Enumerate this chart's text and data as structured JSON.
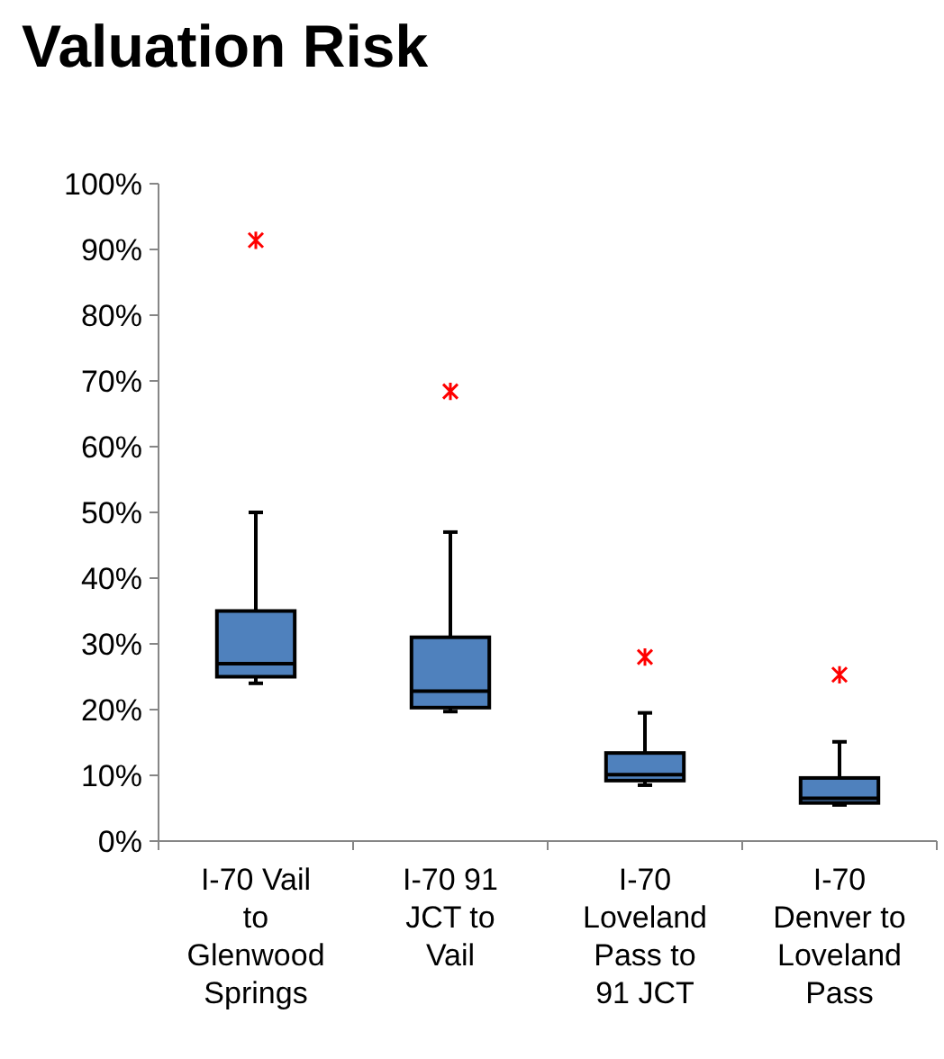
{
  "chart_data": {
    "type": "box",
    "title": "Valuation Risk",
    "categories": [
      "I-70 Vail to Glenwood Springs",
      "I-70 91 JCT to Vail",
      "I-70 Loveland Pass to 91 JCT",
      "I-70 Denver to Loveland Pass"
    ],
    "color": "#4f81bd",
    "boxes": [
      {
        "low": 24,
        "q1": 25,
        "median": 27,
        "q3": 35,
        "high": 50,
        "outliers": [
          91.4
        ]
      },
      {
        "low": 19.7,
        "q1": 20.3,
        "median": 22.8,
        "q3": 31,
        "high": 47,
        "outliers": [
          68.4
        ]
      },
      {
        "low": 8.5,
        "q1": 9.2,
        "median": 10.1,
        "q3": 13.4,
        "high": 19.5,
        "outliers": [
          28
        ]
      },
      {
        "low": 5.5,
        "q1": 5.8,
        "median": 6.5,
        "q3": 9.6,
        "high": 15.1,
        "outliers": [
          25.3
        ]
      }
    ],
    "ylim": [
      0,
      100
    ],
    "yticks": [
      {
        "value": 0,
        "label": "0%"
      },
      {
        "value": 10,
        "label": "10%"
      },
      {
        "value": 20,
        "label": "20%"
      },
      {
        "value": 30,
        "label": "30%"
      },
      {
        "value": 40,
        "label": "40%"
      },
      {
        "value": 50,
        "label": "50%"
      },
      {
        "value": 60,
        "label": "60%"
      },
      {
        "value": 70,
        "label": "70%"
      },
      {
        "value": 80,
        "label": "80%"
      },
      {
        "value": 90,
        "label": "90%"
      },
      {
        "value": 100,
        "label": "100%"
      }
    ],
    "grid": false,
    "marker": "cross"
  }
}
